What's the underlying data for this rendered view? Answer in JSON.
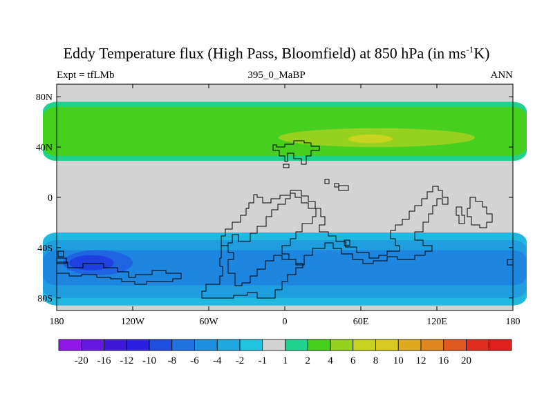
{
  "chart_data": {
    "type": "heatmap",
    "title": "Eddy Temperature flux (High Pass, Bloomfield) at 850 hPa (in ms",
    "title_superscript": "-1",
    "title_suffix": "K)",
    "subtitle_left": "Expt = tfLMb",
    "subtitle_center": "395_0_MaBP",
    "subtitle_right": "ANN",
    "xlim": [
      -180,
      180
    ],
    "ylim": [
      -90,
      90
    ],
    "x_ticks": [
      {
        "value": -180,
        "label": "180"
      },
      {
        "value": -120,
        "label": "120W"
      },
      {
        "value": -60,
        "label": "60W"
      },
      {
        "value": 0,
        "label": "0"
      },
      {
        "value": 60,
        "label": "60E"
      },
      {
        "value": 120,
        "label": "120E"
      },
      {
        "value": 180,
        "label": "180"
      }
    ],
    "y_ticks": [
      {
        "value": 80,
        "label": "80N"
      },
      {
        "value": 40,
        "label": "40N"
      },
      {
        "value": 0,
        "label": "0"
      },
      {
        "value": -40,
        "label": "40S"
      },
      {
        "value": -80,
        "label": "80S"
      }
    ],
    "background_color": "#d3d3d3",
    "bands": [
      {
        "level": "1 to 2",
        "color": "#1fd38f",
        "lat_north": 76,
        "lat_south": 29
      },
      {
        "level": "2 to 4",
        "color": "#46cf1f",
        "lat_north": 72,
        "lat_south": 33
      },
      {
        "level": "4 to 6",
        "color": "#96d11f",
        "lat_min": 40,
        "lat_max": 55,
        "lon_min": -5,
        "lon_max": 150
      },
      {
        "level": "6 to 8",
        "color": "#c7d41f",
        "lat_min": 43,
        "lat_max": 50,
        "lon_min": 50,
        "lon_max": 85
      },
      {
        "level": "-1 to -2",
        "color": "#21b8e0",
        "lat_north": -28,
        "lat_south": -86
      },
      {
        "level": "-2 to -4",
        "color": "#1f9fe0",
        "lat_north": -34,
        "lat_south": -80
      },
      {
        "level": "-4 to -6",
        "color": "#1f86e0",
        "lat_north": -42,
        "lat_south": -70
      },
      {
        "level": "-6 to -8",
        "color": "#1f64e0",
        "lat_min": -62,
        "lat_max": -42,
        "lon_min": -175,
        "lon_max": -120
      },
      {
        "level": "-8 to -10",
        "color": "#1f3fe0",
        "lat_min": -58,
        "lat_max": -46,
        "lon_min": -170,
        "lon_max": -135
      }
    ],
    "colorbar": {
      "colors": [
        "#8f17e8",
        "#6519e0",
        "#3f17d8",
        "#2d1fe0",
        "#1f4fe0",
        "#1f72e0",
        "#1f8fe0",
        "#1fa8e0",
        "#21c4e0",
        "#d3d3d3",
        "#1fd38f",
        "#46cf1f",
        "#96d11f",
        "#c7d41f",
        "#d8c91f",
        "#e0a81f",
        "#e0861f",
        "#e05a1f",
        "#e02d1f",
        "#e01f1f"
      ],
      "labels": [
        "-20",
        "-16",
        "-12",
        "-10",
        "-8",
        "-6",
        "-4",
        "-2",
        "-1",
        "1",
        "2",
        "4",
        "6",
        "8",
        "10",
        "12",
        "16",
        "20"
      ]
    }
  }
}
